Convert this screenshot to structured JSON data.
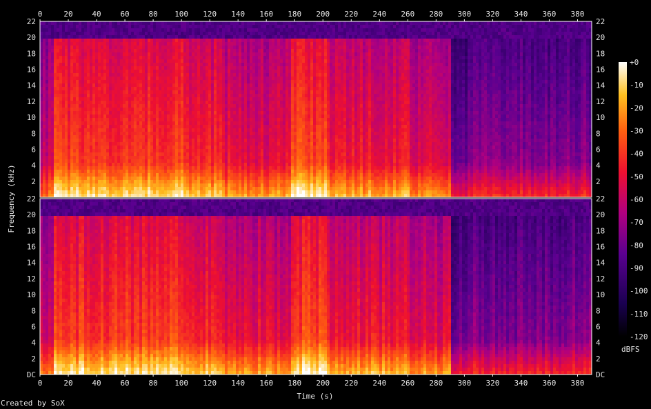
{
  "chart_data": {
    "type": "heatmap",
    "xlabel": "Time (s)",
    "ylabel": "Frequency (kHz)",
    "x_ticks": [
      "0",
      "20",
      "40",
      "60",
      "80",
      "100",
      "120",
      "140",
      "160",
      "180",
      "200",
      "220",
      "240",
      "260",
      "280",
      "300",
      "320",
      "340",
      "360",
      "380"
    ],
    "y_ticks": [
      "DC",
      "2",
      "4",
      "6",
      "8",
      "10",
      "12",
      "14",
      "16",
      "18",
      "20",
      "22"
    ],
    "xlim": [
      0,
      390
    ],
    "ylim_khz": [
      0,
      22
    ],
    "channels": 2,
    "colorbar": {
      "label": "dBFS",
      "ticks": [
        "+0",
        "-10",
        "-20",
        "-30",
        "-40",
        "-50",
        "-60",
        "-70",
        "-80",
        "-90",
        "-100",
        "-110",
        "-120"
      ],
      "range": [
        -120,
        0
      ]
    },
    "segments": [
      {
        "start": 0,
        "end": 8,
        "level": 0.55
      },
      {
        "start": 8,
        "end": 100,
        "level": 0.72
      },
      {
        "start": 100,
        "end": 130,
        "level": 0.68
      },
      {
        "start": 130,
        "end": 176,
        "level": 0.62
      },
      {
        "start": 176,
        "end": 204,
        "level": 0.74
      },
      {
        "start": 204,
        "end": 260,
        "level": 0.64
      },
      {
        "start": 260,
        "end": 290,
        "level": 0.6
      },
      {
        "start": 290,
        "end": 305,
        "level": 0.38
      },
      {
        "start": 305,
        "end": 390,
        "level": 0.42
      }
    ],
    "lowpass_khz": [
      {
        "start": 0,
        "end": 290,
        "cutoff": 20
      },
      {
        "start": 290,
        "end": 390,
        "cutoff": 20
      }
    ]
  },
  "credit": "Created by SoX",
  "colors": {
    "background": "#000000",
    "axis": "#ffffff",
    "hot": "#ffff80",
    "mid": "#ff2020",
    "cold": "#400070"
  }
}
